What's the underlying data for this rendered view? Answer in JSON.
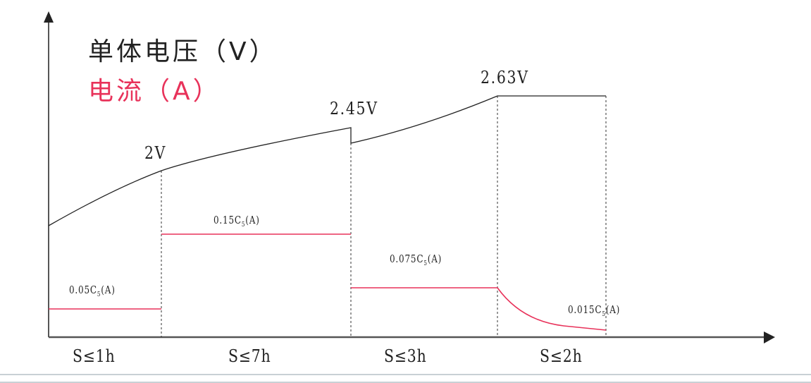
{
  "legend": {
    "voltage": "单体电压（V）",
    "current": "电流（A）"
  },
  "colors": {
    "voltage": "#222222",
    "current": "#e8325a",
    "axis": "#555555",
    "divider": "#c9d0d5"
  },
  "voltage_labels": [
    "2V",
    "2.45V",
    "2.63V"
  ],
  "current_labels": [
    {
      "pre": "0.05C",
      "sub": "5",
      "post": "(A)"
    },
    {
      "pre": "0.15C",
      "sub": "5",
      "post": "(A)"
    },
    {
      "pre": "0.075C",
      "sub": "5",
      "post": "(A)"
    },
    {
      "pre": "0.015C",
      "sub": "5",
      "post": "(A)"
    }
  ],
  "stage_durations": [
    "S≤1h",
    "S≤7h",
    "S≤3h",
    "S≤2h"
  ]
}
